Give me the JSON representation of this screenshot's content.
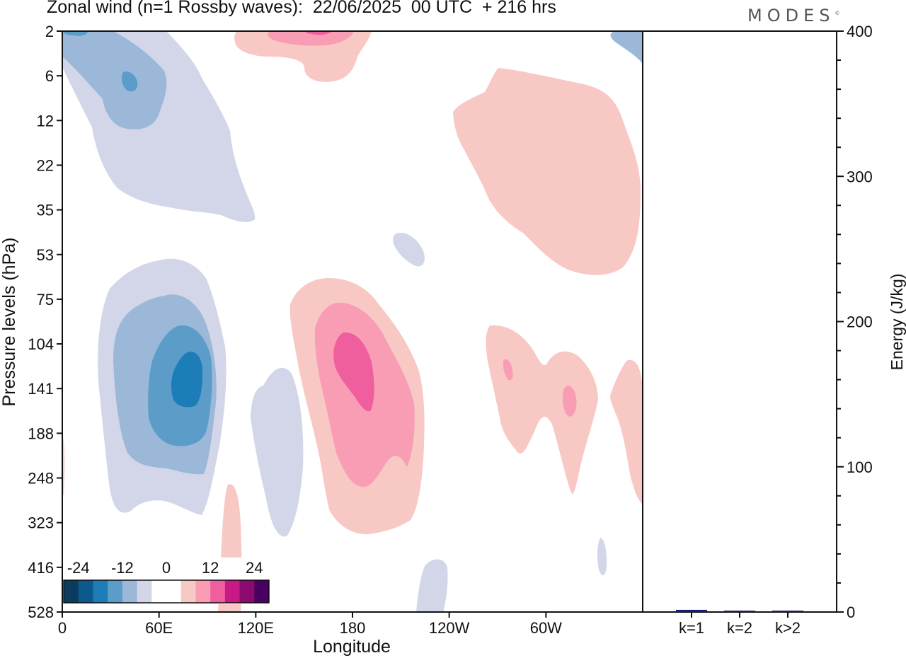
{
  "title": "Zonal wind (n=1 Rossby waves):  22/06/2025  00 UTC  + 216 hrs",
  "brand": "MODES",
  "brand_mark": "©",
  "colors": {
    "neg": [
      "#0a3c5e",
      "#0c5a8d",
      "#1d7db8",
      "#5b9cc8",
      "#9bb8d8",
      "#d2d6e8"
    ],
    "zero": "#ffffff",
    "pos": [
      "#f8c8c4",
      "#f89db4",
      "#ef5f9e",
      "#c81a84",
      "#8a0a6e",
      "#4a0060"
    ]
  },
  "chart_data": [
    {
      "type": "heatmap",
      "title": "Zonal wind (n=1 Rossby waves):  22/06/2025  00 UTC  + 216 hrs",
      "xlabel": "Longitude",
      "ylabel": "Pressure levels (hPa)",
      "x_ticks": [
        "0",
        "60E",
        "120E",
        "180",
        "120W",
        "60W"
      ],
      "x_tick_degrees": [
        0,
        60,
        120,
        180,
        240,
        300
      ],
      "xlim": [
        0,
        360
      ],
      "y_ticks": [
        "2",
        "6",
        "12",
        "22",
        "35",
        "53",
        "75",
        "104",
        "141",
        "188",
        "248",
        "323",
        "416",
        "528"
      ],
      "y_scale": "categorical pressure levels, 2 hPa at top, 528 hPa at bottom",
      "colorbar": {
        "labels": [
          "-24",
          "-12",
          "0",
          "12",
          "24"
        ],
        "levels": [
          -24,
          -12,
          0,
          12,
          24
        ],
        "placement": "bottom-left inside plot"
      },
      "features": [
        {
          "name": "upper easterly lobe",
          "sign": "negative",
          "lon": [
            0,
            120
          ],
          "levels": [
            "2",
            "35"
          ],
          "min": -18
        },
        {
          "name": "mid easterly core",
          "sign": "negative",
          "lon": [
            22,
            102
          ],
          "levels": [
            "53",
            "323"
          ],
          "min": -24
        },
        {
          "name": "narrow easterly band",
          "sign": "negative",
          "lon": [
            118,
            150
          ],
          "levels": [
            "104",
            "323"
          ],
          "min": -6
        },
        {
          "name": "upper westerly lobe",
          "sign": "positive",
          "lon": [
            105,
            190
          ],
          "levels": [
            "2",
            "6"
          ],
          "max": 16
        },
        {
          "name": "stratospheric westerly lobe",
          "sign": "positive",
          "lon": [
            240,
            360
          ],
          "levels": [
            "6",
            "53"
          ],
          "max": 6
        },
        {
          "name": "westerly core",
          "sign": "positive",
          "lon": [
            140,
            225
          ],
          "levels": [
            "75",
            "323"
          ],
          "max": 20
        },
        {
          "name": "eastern westerly patch",
          "sign": "positive",
          "lon": [
            262,
            330
          ],
          "levels": [
            "104",
            "248"
          ],
          "max": 12
        },
        {
          "name": "low westerly strip",
          "sign": "positive",
          "lon": [
            97,
            110
          ],
          "levels": [
            "248",
            "528"
          ],
          "max": 6
        }
      ]
    },
    {
      "type": "bar",
      "categories": [
        "k=1",
        "k=2",
        "k>2"
      ],
      "values": [
        1.5,
        0.6,
        0.6
      ],
      "ylabel": "Energy (J/kg)",
      "ylim": [
        0,
        400
      ],
      "y_ticks": [
        "0",
        "100",
        "200",
        "300",
        "400"
      ],
      "bar_color": "#1a1a7a"
    }
  ]
}
